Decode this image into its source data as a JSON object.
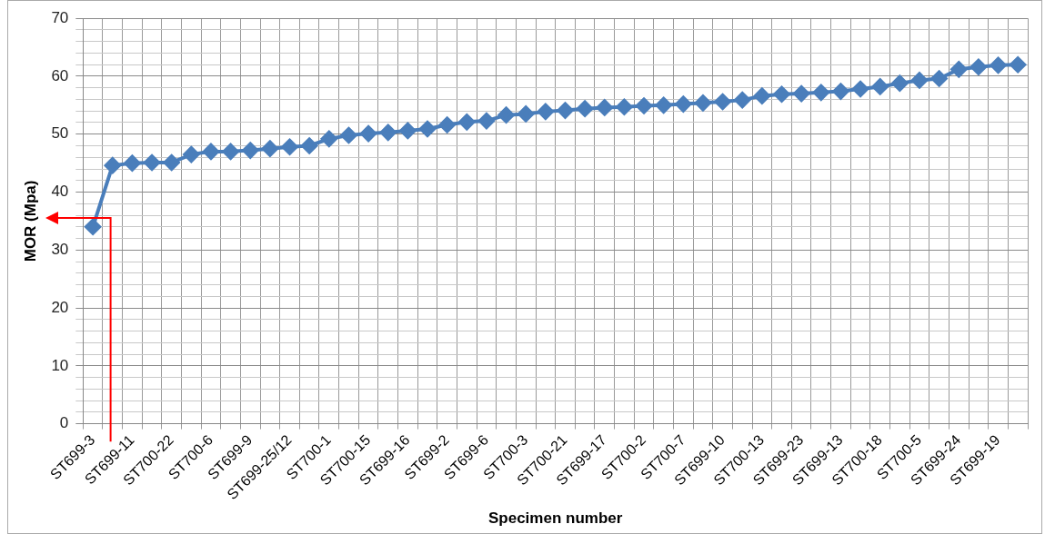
{
  "chart_data": {
    "type": "line",
    "xlabel": "Specimen number",
    "ylabel": "MOR (Mpa)",
    "categories": [
      "ST699-3",
      null,
      "ST699-11",
      null,
      "ST700-22",
      null,
      "ST700-6",
      null,
      "ST699-9",
      null,
      "ST699-25/12",
      null,
      "ST700-1",
      null,
      "ST700-15",
      null,
      "ST699-16",
      null,
      "ST699-2",
      null,
      "ST699-6",
      null,
      "ST700-3",
      null,
      "ST700-21",
      null,
      "ST699-17",
      null,
      "ST700-2",
      null,
      "ST700-7",
      null,
      "ST699-10",
      null,
      "ST700-13",
      null,
      "ST699-23",
      null,
      "ST699-13",
      null,
      "ST700-18",
      null,
      "ST700-5",
      null,
      "ST699-24",
      null,
      "ST699-19",
      null
    ],
    "series": [
      {
        "color": "#4a7ebb",
        "values": [
          34,
          44.6,
          45,
          45.1,
          45.1,
          46.5,
          47,
          47,
          47.2,
          47.5,
          47.8,
          48,
          49.2,
          49.8,
          50.1,
          50.3,
          50.6,
          50.9,
          51.6,
          52.1,
          52.3,
          53.3,
          53.5,
          53.9,
          54.1,
          54.4,
          54.6,
          54.7,
          54.9,
          55,
          55.2,
          55.4,
          55.6,
          55.9,
          56.6,
          56.9,
          57,
          57.2,
          57.4,
          57.8,
          58.2,
          58.8,
          59.3,
          59.6,
          61.2,
          61.6,
          61.9,
          62
        ]
      }
    ],
    "ylim": [
      0,
      70
    ],
    "yticks": [
      0,
      {
        "value": 2,
        "label": null
      },
      {
        "value": 4,
        "label": null
      },
      {
        "value": 6,
        "label": null
      },
      {
        "value": 8,
        "label": null
      },
      10,
      {
        "value": 12,
        "label": null
      },
      {
        "value": 14,
        "label": null
      },
      {
        "value": 16,
        "label": null
      },
      {
        "value": 18,
        "label": null
      },
      20,
      {
        "value": 22,
        "label": null
      },
      {
        "value": 24,
        "label": null
      },
      {
        "value": 26,
        "label": null
      },
      {
        "value": 28,
        "label": null
      },
      30,
      {
        "value": 32,
        "label": null
      },
      {
        "value": 34,
        "label": null
      },
      {
        "value": 36,
        "label": null
      },
      {
        "value": 38,
        "label": null
      },
      40,
      {
        "value": 42,
        "label": null
      },
      {
        "value": 44,
        "label": null
      },
      {
        "value": 46,
        "label": null
      },
      {
        "value": 48,
        "label": null
      },
      50,
      {
        "value": 52,
        "label": null
      },
      {
        "value": 54,
        "label": null
      },
      {
        "value": 56,
        "label": null
      },
      {
        "value": 58,
        "label": null
      },
      60,
      {
        "value": 62,
        "label": null
      },
      {
        "value": 64,
        "label": null
      },
      {
        "value": 66,
        "label": null
      },
      {
        "value": 68,
        "label": null
      },
      70
    ],
    "grid": true,
    "legend": false,
    "marker": "diamond",
    "line_style": "solid"
  }
}
